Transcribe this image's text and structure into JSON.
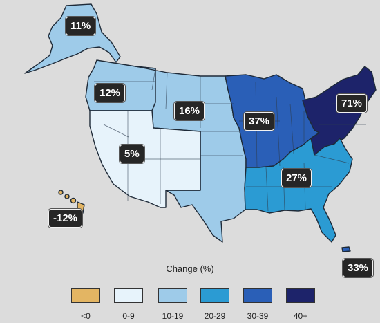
{
  "regions": [
    {
      "id": "alaska",
      "label": "11%",
      "change": 11,
      "bin": "10-19"
    },
    {
      "id": "northwest",
      "label": "12%",
      "change": 12,
      "bin": "10-19"
    },
    {
      "id": "great-plains",
      "label": "16%",
      "change": 16,
      "bin": "10-19"
    },
    {
      "id": "southwest",
      "label": "5%",
      "change": 5,
      "bin": "0-9"
    },
    {
      "id": "midwest",
      "label": "37%",
      "change": 37,
      "bin": "30-39"
    },
    {
      "id": "northeast",
      "label": "71%",
      "change": 71,
      "bin": "40+"
    },
    {
      "id": "southeast",
      "label": "27%",
      "change": 27,
      "bin": "20-29"
    },
    {
      "id": "hawaii",
      "label": "-12%",
      "change": -12,
      "bin": "<0"
    },
    {
      "id": "puerto-rico",
      "label": "33%",
      "change": 33,
      "bin": "30-39"
    }
  ],
  "legend": {
    "title": "Change (%)",
    "items": [
      {
        "label": "<0",
        "color": "#e3b563"
      },
      {
        "label": "0-9",
        "color": "#e7f3fb"
      },
      {
        "label": "10-19",
        "color": "#9ecbe9"
      },
      {
        "label": "20-29",
        "color": "#2b9bd3"
      },
      {
        "label": "30-39",
        "color": "#2a5fb7"
      },
      {
        "label": "40+",
        "color": "#1d236a"
      }
    ]
  }
}
